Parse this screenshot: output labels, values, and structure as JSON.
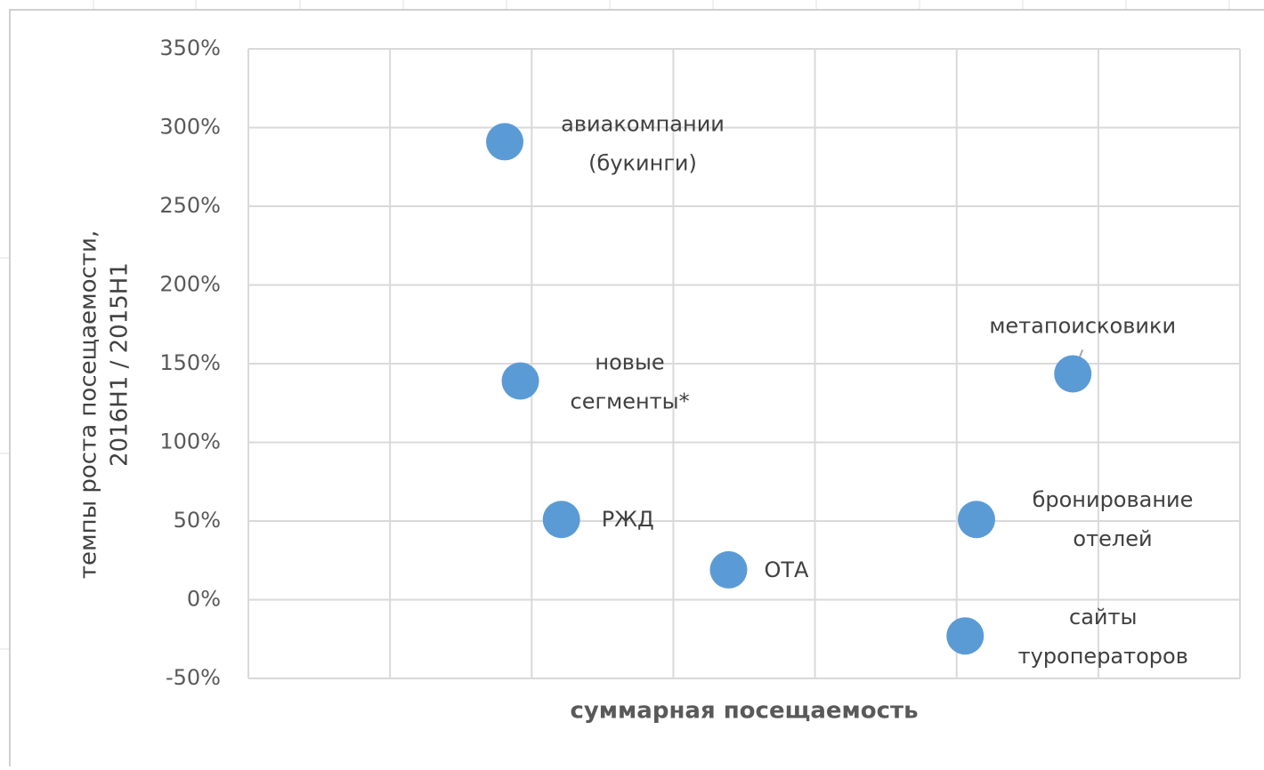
{
  "chart_data": {
    "type": "scatter",
    "xlabel": "суммарная посещаемость",
    "ylabel": [
      "темпы роста посещаемости,",
      "2016H1 / 2015H1"
    ],
    "series": [
      {
        "color": "#5b9bd5",
        "x": [
          1.81,
          1.92,
          2.21,
          3.39,
          5.14,
          5.06,
          5.82
        ],
        "values": [
          291,
          139,
          51,
          19,
          51,
          -23,
          143.5
        ]
      }
    ],
    "labels": [
      [
        "авиакомпании",
        "(букинги)"
      ],
      [
        "новые",
        "сегменты*"
      ],
      [
        "РЖД"
      ],
      [
        "ОТА"
      ],
      [
        "бронирование",
        "отелей"
      ],
      [
        "сайты",
        "туроператоров"
      ],
      [
        "метапоисковики"
      ]
    ],
    "xlim": [
      0,
      7
    ],
    "xticks": [
      0,
      1,
      2,
      3,
      4,
      5,
      6,
      7
    ],
    "ylim": [
      -50,
      350
    ],
    "yticks": [
      {
        "value": -50,
        "label": "-50%"
      },
      {
        "value": 0,
        "label": "0%"
      },
      {
        "value": 50,
        "label": "50%"
      },
      {
        "value": 100,
        "label": "100%"
      },
      {
        "value": 150,
        "label": "150%"
      },
      {
        "value": 200,
        "label": "200%"
      },
      {
        "value": 250,
        "label": "250%"
      },
      {
        "value": 300,
        "label": "300%"
      },
      {
        "value": 350,
        "label": "350%"
      }
    ],
    "grid": true
  }
}
